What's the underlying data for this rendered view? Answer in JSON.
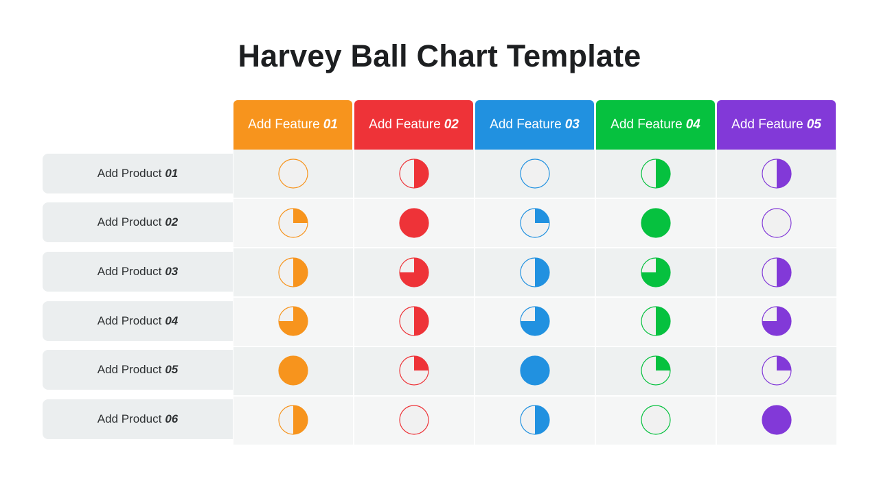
{
  "title": "Harvey Ball Chart Template",
  "features": [
    {
      "prefix": "Add Feature",
      "number": "01",
      "color": "#f7941d"
    },
    {
      "prefix": "Add Feature",
      "number": "02",
      "color": "#ee3338"
    },
    {
      "prefix": "Add Feature",
      "number": "03",
      "color": "#2191e0"
    },
    {
      "prefix": "Add Feature",
      "number": "04",
      "color": "#06c13f"
    },
    {
      "prefix": "Add Feature",
      "number": "05",
      "color": "#8239d8"
    }
  ],
  "products": [
    {
      "prefix": "Add Product",
      "number": "01"
    },
    {
      "prefix": "Add Product",
      "number": "02"
    },
    {
      "prefix": "Add Product",
      "number": "03"
    },
    {
      "prefix": "Add Product",
      "number": "04"
    },
    {
      "prefix": "Add Product",
      "number": "05"
    },
    {
      "prefix": "Add Product",
      "number": "06"
    }
  ],
  "ball_empty_fill": "#f1f1f1",
  "ratings": [
    [
      0,
      0.5,
      0,
      0.5,
      0.5
    ],
    [
      0.25,
      1,
      0.25,
      1,
      0
    ],
    [
      0.5,
      0.75,
      0.5,
      0.75,
      0.5
    ],
    [
      0.75,
      0.5,
      0.75,
      0.5,
      0.75
    ],
    [
      1,
      0.25,
      1,
      0.25,
      0.25
    ],
    [
      0.5,
      0,
      0.5,
      0,
      1
    ]
  ]
}
